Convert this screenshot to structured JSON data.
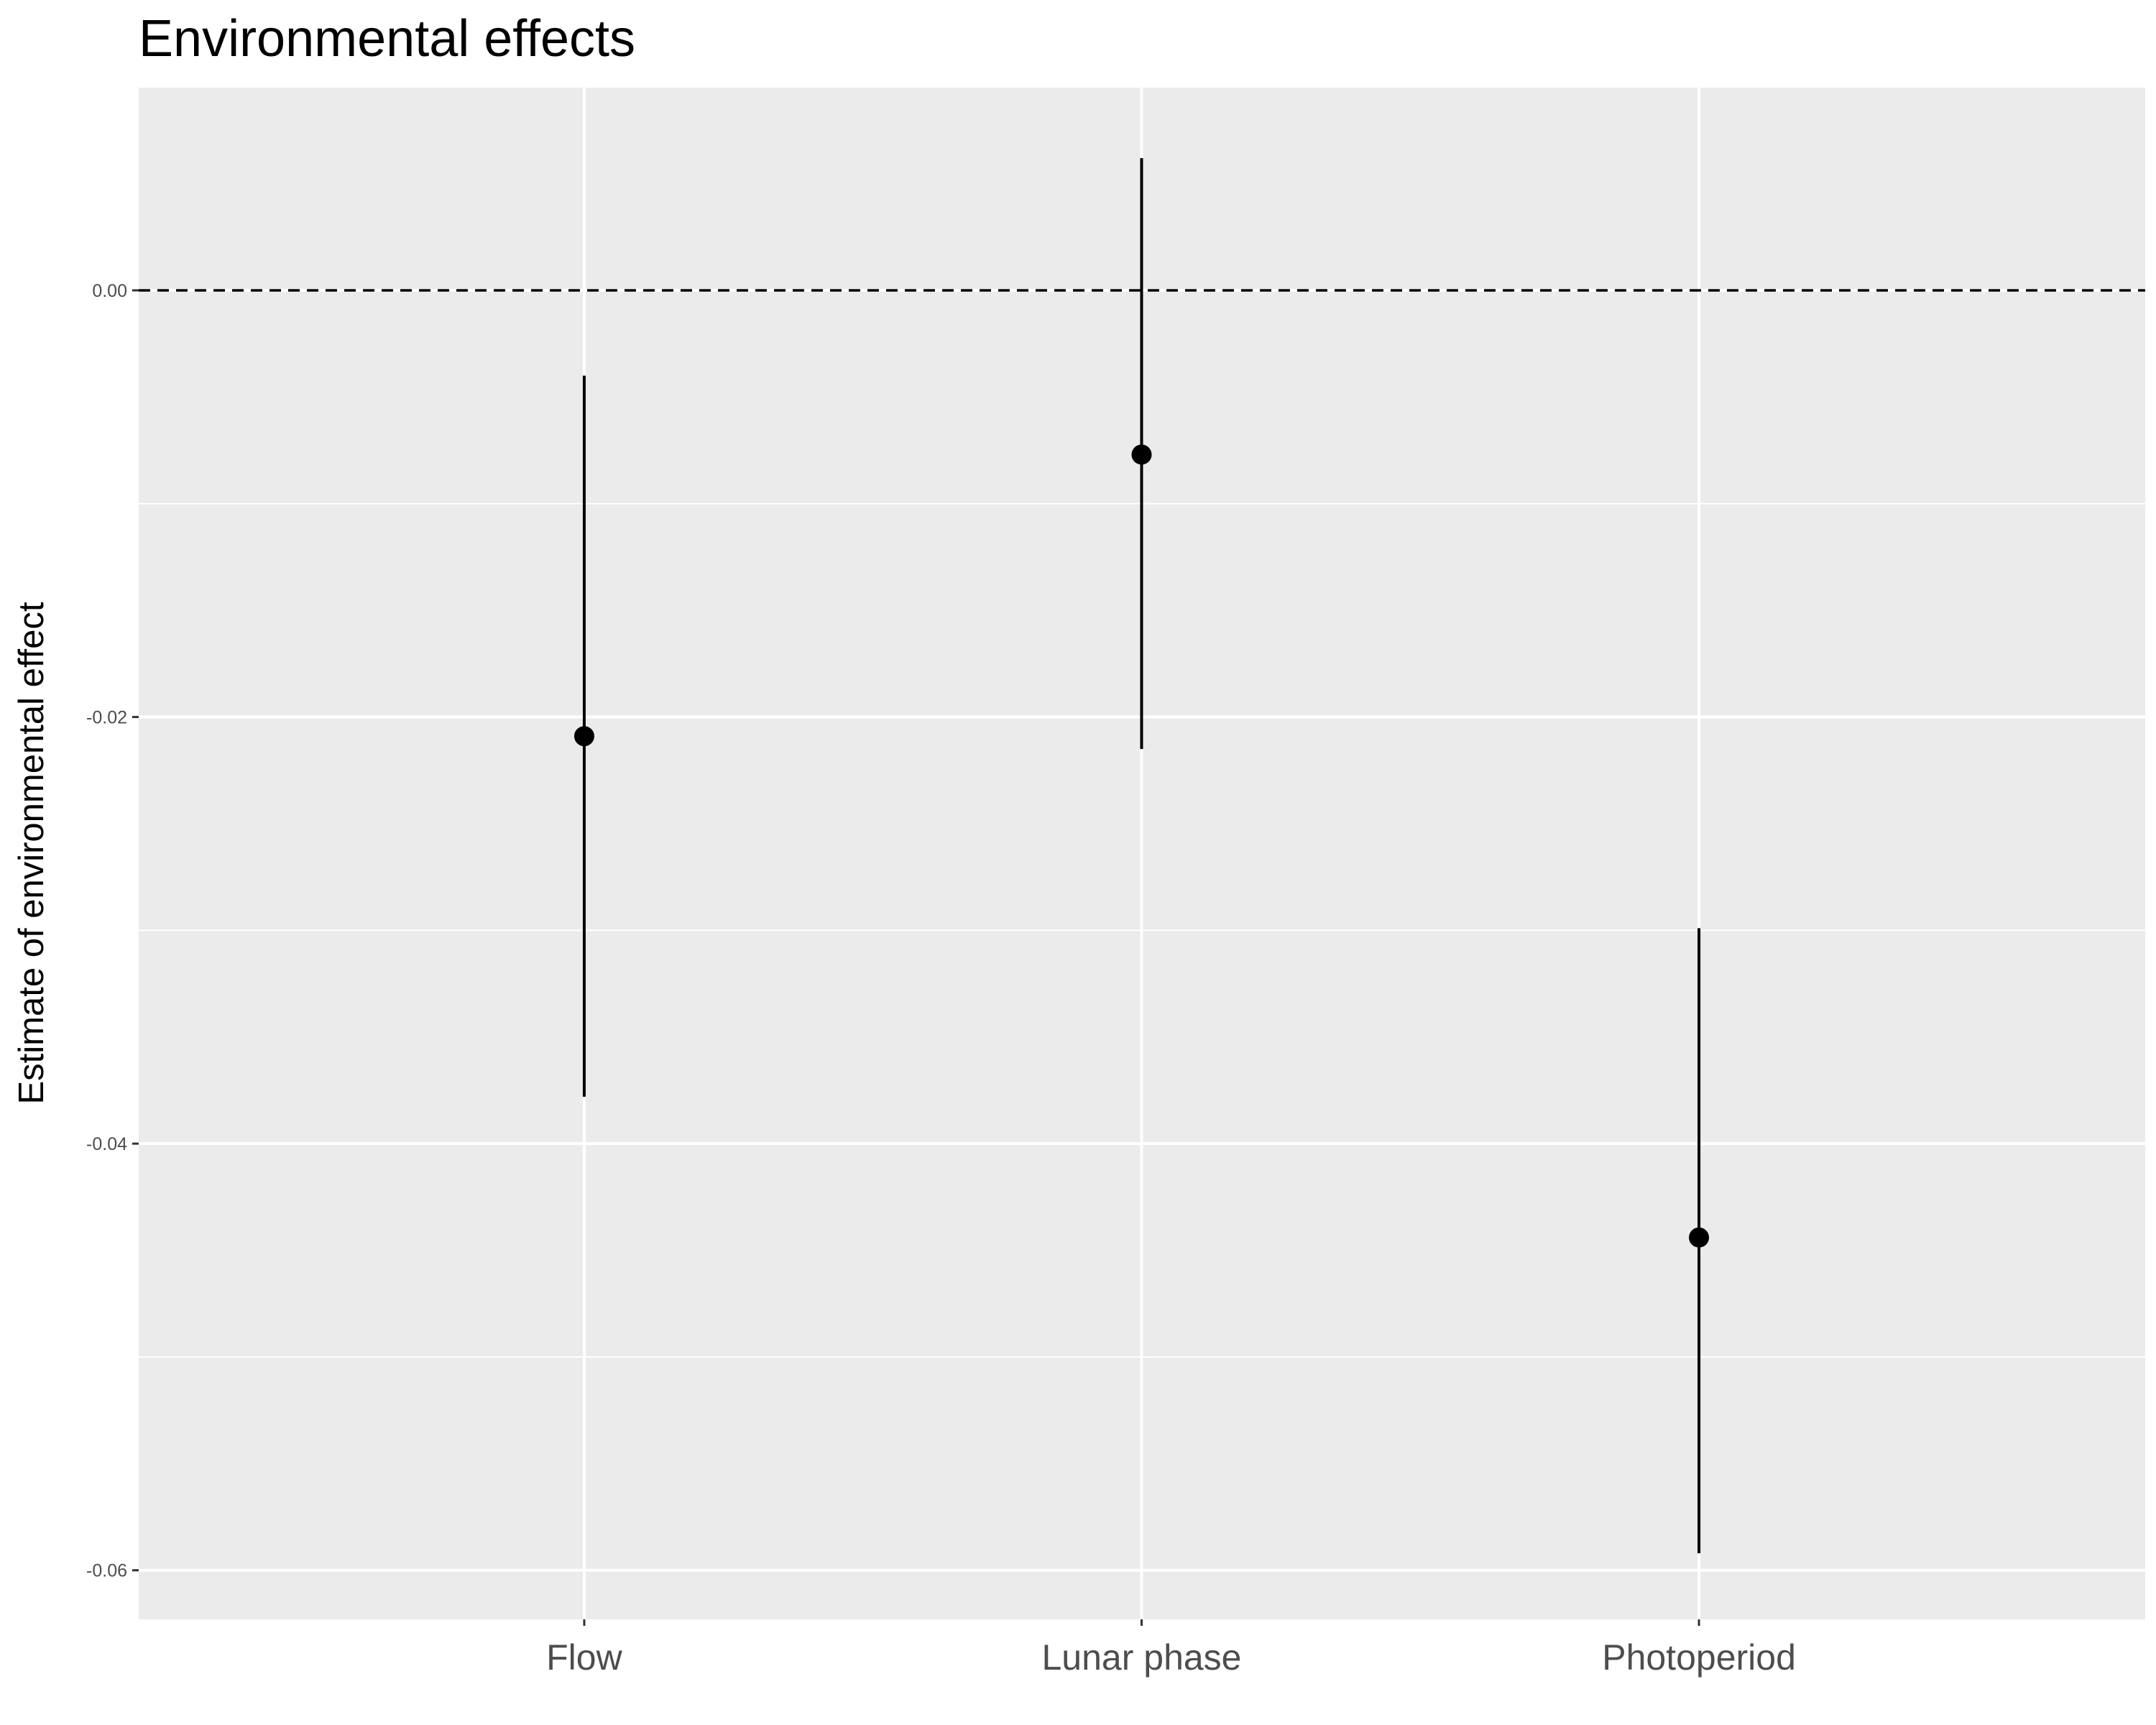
{
  "chart_data": {
    "type": "scatter",
    "title": "Environmental effects",
    "xlabel": "",
    "ylabel": "Estimate of environmental effect",
    "categories": [
      "Flow",
      "Lunar phase",
      "Photoperiod"
    ],
    "estimates": [
      -0.0209,
      -0.0077,
      -0.0444
    ],
    "lower": [
      -0.0378,
      -0.0215,
      -0.0592
    ],
    "upper": [
      -0.004,
      0.0062,
      -0.0299
    ],
    "yticks": [
      0.0,
      -0.02,
      -0.04,
      -0.06
    ],
    "ytick_labels": [
      "0.00",
      "-0.02",
      "-0.04",
      "-0.06"
    ],
    "ylim": [
      -0.0623,
      0.0095
    ],
    "reference_line": 0,
    "grid": true,
    "colors": {
      "panel": "#ebebeb",
      "grid": "#ffffff",
      "point": "#000000",
      "tick_text": "#4d4d4d"
    }
  }
}
